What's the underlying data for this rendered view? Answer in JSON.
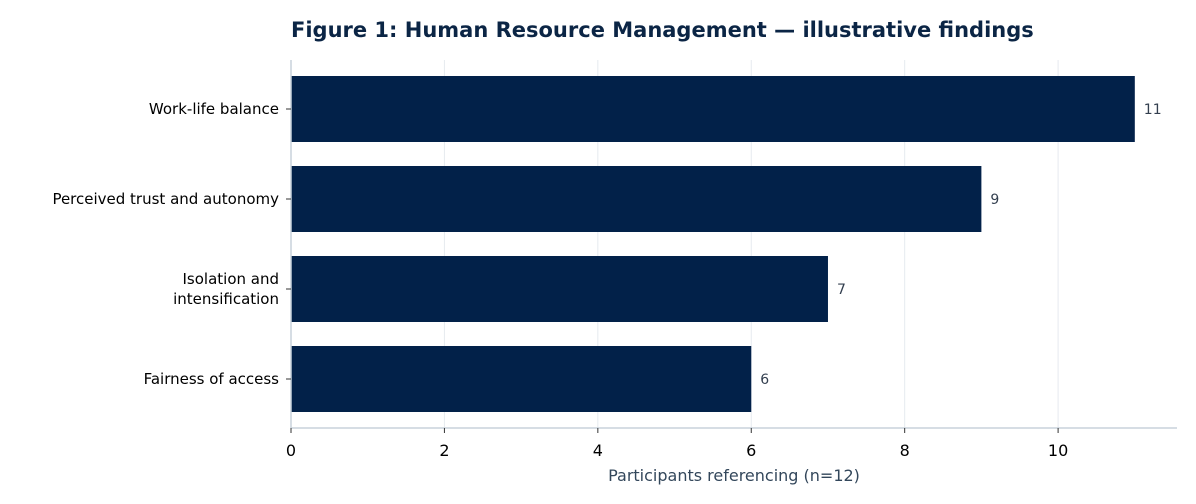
{
  "chart_data": {
    "type": "bar",
    "orientation": "horizontal",
    "title": "Figure 1: Human Resource Management — illustrative findings",
    "xlabel": "Participants referencing (n=12)",
    "ylabel": "",
    "categories": [
      [
        "Work-life balance"
      ],
      [
        "Perceived trust and autonomy"
      ],
      [
        "Isolation and",
        "intensification"
      ],
      [
        "Fairness of access"
      ]
    ],
    "values": [
      11,
      9,
      7,
      6
    ],
    "value_labels": [
      "11",
      "9",
      "7",
      "6"
    ],
    "xlim": [
      0,
      11.55
    ],
    "xticks": [
      0,
      2,
      4,
      6,
      8,
      10
    ],
    "xtick_labels": [
      "0",
      "2",
      "4",
      "6",
      "8",
      "10"
    ],
    "grid": "vertical",
    "colors": {
      "bar": "#022149",
      "title": "#0b2545",
      "grid": "#e6eaef",
      "axis": "#c8d2dc"
    }
  }
}
